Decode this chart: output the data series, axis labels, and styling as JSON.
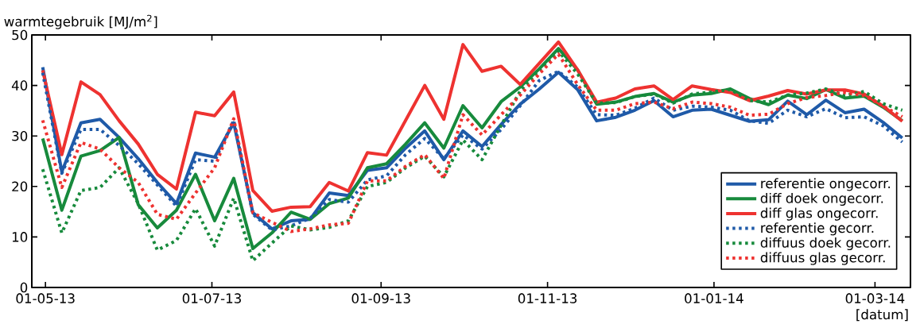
{
  "chart_data": {
    "type": "line",
    "ylabel": "warmtegebruik [MJ/m$^{2}$]",
    "xlabel": "[datum]",
    "x": [
      "2013-04-30",
      "2013-05-07",
      "2013-05-14",
      "2013-05-21",
      "2013-05-28",
      "2013-06-04",
      "2013-06-11",
      "2013-06-18",
      "2013-06-25",
      "2013-07-02",
      "2013-07-09",
      "2013-07-16",
      "2013-07-23",
      "2013-07-30",
      "2013-08-06",
      "2013-08-13",
      "2013-08-20",
      "2013-08-27",
      "2013-09-03",
      "2013-09-10",
      "2013-09-17",
      "2013-09-24",
      "2013-10-01",
      "2013-10-08",
      "2013-10-15",
      "2013-10-22",
      "2013-10-29",
      "2013-11-05",
      "2013-11-12",
      "2013-11-19",
      "2013-11-26",
      "2013-12-03",
      "2013-12-10",
      "2013-12-17",
      "2013-12-24",
      "2013-12-31",
      "2014-01-07",
      "2014-01-14",
      "2014-01-21",
      "2014-01-28",
      "2014-02-04",
      "2014-02-11",
      "2014-02-18",
      "2014-02-25",
      "2014-03-04",
      "2014-03-11"
    ],
    "xlim": [
      "2013-04-26",
      "2014-03-14"
    ],
    "xticks": [
      {
        "value": "2013-05-01",
        "label": "01-05-13"
      },
      {
        "value": "2013-07-01",
        "label": "01-07-13"
      },
      {
        "value": "2013-09-01",
        "label": "01-09-13"
      },
      {
        "value": "2013-11-01",
        "label": "01-11-13"
      },
      {
        "value": "2014-01-01",
        "label": "01-01-14"
      },
      {
        "value": "2014-03-01",
        "label": "01-03-14"
      }
    ],
    "ylim": [
      0,
      50
    ],
    "yticks": [
      0,
      10,
      20,
      30,
      40,
      50
    ],
    "legend": "bottom right",
    "series": [
      {
        "name": "referentie ongecorr.",
        "color": "#1f5aa8",
        "line_style": "solid",
        "values": [
          43.6,
          22.9,
          32.6,
          33.3,
          29.7,
          25.5,
          20.8,
          16.6,
          26.6,
          25.8,
          32.6,
          14.8,
          11.6,
          13.2,
          13.5,
          18.7,
          18.2,
          23.2,
          23.7,
          27.6,
          31.0,
          25.3,
          31.0,
          27.9,
          32.3,
          36.3,
          39.3,
          42.6,
          39.2,
          33.0,
          33.7,
          35.1,
          37.0,
          33.8,
          35.1,
          35.3,
          34.1,
          32.9,
          33.2,
          36.9,
          34.2,
          37.1,
          34.6,
          35.3,
          32.7,
          29.6
        ]
      },
      {
        "name": "diff doek ongecorr.",
        "color": "#178a3c",
        "line_style": "solid",
        "values": [
          29.5,
          15.3,
          26.0,
          27.1,
          29.7,
          16.4,
          11.8,
          15.3,
          22.4,
          13.2,
          21.6,
          7.7,
          10.8,
          14.9,
          13.5,
          16.6,
          17.7,
          23.7,
          24.5,
          28.4,
          32.6,
          27.6,
          36.0,
          31.6,
          36.8,
          39.7,
          43.3,
          47.3,
          43.1,
          36.3,
          36.7,
          37.8,
          38.4,
          36.7,
          38.1,
          38.4,
          39.3,
          37.4,
          36.2,
          38.1,
          37.4,
          39.2,
          37.5,
          37.9,
          35.7,
          33.0
        ]
      },
      {
        "name": "diff glas ongecorr.",
        "color": "#ee3230",
        "line_style": "solid",
        "values": [
          43.0,
          26.3,
          40.7,
          38.2,
          33.0,
          28.4,
          22.4,
          19.5,
          34.7,
          34.0,
          38.7,
          19.2,
          15.1,
          15.9,
          16.0,
          20.8,
          19.1,
          26.7,
          26.2,
          33.1,
          40.0,
          33.3,
          48.1,
          42.8,
          43.8,
          40.2,
          44.4,
          48.6,
          43.1,
          36.7,
          37.5,
          39.3,
          39.9,
          37.2,
          39.9,
          39.2,
          38.6,
          37.0,
          37.9,
          39.0,
          38.3,
          39.1,
          39.1,
          38.3,
          35.9,
          32.9
        ]
      },
      {
        "name": "referentie gecorr.",
        "color": "#1f5aa8",
        "line_style": "dotted",
        "values": [
          42.5,
          22.6,
          31.3,
          31.3,
          28.1,
          24.5,
          20.3,
          16.1,
          25.3,
          25.0,
          33.1,
          14.5,
          11.4,
          12.2,
          13.7,
          17.4,
          16.9,
          21.3,
          22.1,
          26.3,
          29.5,
          25.5,
          30.2,
          27.4,
          31.3,
          36.0,
          41.0,
          42.8,
          39.7,
          34.2,
          34.1,
          35.5,
          37.5,
          35.1,
          35.9,
          35.7,
          35.1,
          33.0,
          32.5,
          35.1,
          33.8,
          35.4,
          33.6,
          33.8,
          32.0,
          28.8
        ]
      },
      {
        "name": "diffuus doek gecorr.",
        "color": "#178a3c",
        "line_style": "dotted",
        "values": [
          23.4,
          10.8,
          19.2,
          19.8,
          23.7,
          16.6,
          7.4,
          9.3,
          15.6,
          8.2,
          17.7,
          5.3,
          8.8,
          12.2,
          11.4,
          11.9,
          13.2,
          20.0,
          20.8,
          23.7,
          26.0,
          21.9,
          29.2,
          25.3,
          32.1,
          38.9,
          43.1,
          46.8,
          42.3,
          36.5,
          36.6,
          37.8,
          38.3,
          36.5,
          38.3,
          38.7,
          39.2,
          37.0,
          36.7,
          38.1,
          38.5,
          39.3,
          38.0,
          38.8,
          36.4,
          35.1
        ]
      },
      {
        "name": "diffuus glas gecorr.",
        "color": "#ee3230",
        "line_style": "dotted",
        "values": [
          33.1,
          19.8,
          28.7,
          27.4,
          23.7,
          20.8,
          14.5,
          13.5,
          18.7,
          23.7,
          33.4,
          14.8,
          12.9,
          11.1,
          11.6,
          12.4,
          12.7,
          21.1,
          21.1,
          24.0,
          26.3,
          21.6,
          34.2,
          30.2,
          34.2,
          38.1,
          42.3,
          46.2,
          40.2,
          35.1,
          35.1,
          36.4,
          36.7,
          35.4,
          36.7,
          36.4,
          35.7,
          34.1,
          34.3,
          36.4,
          37.6,
          38.0,
          38.6,
          38.0,
          35.9,
          33.8
        ]
      }
    ]
  }
}
